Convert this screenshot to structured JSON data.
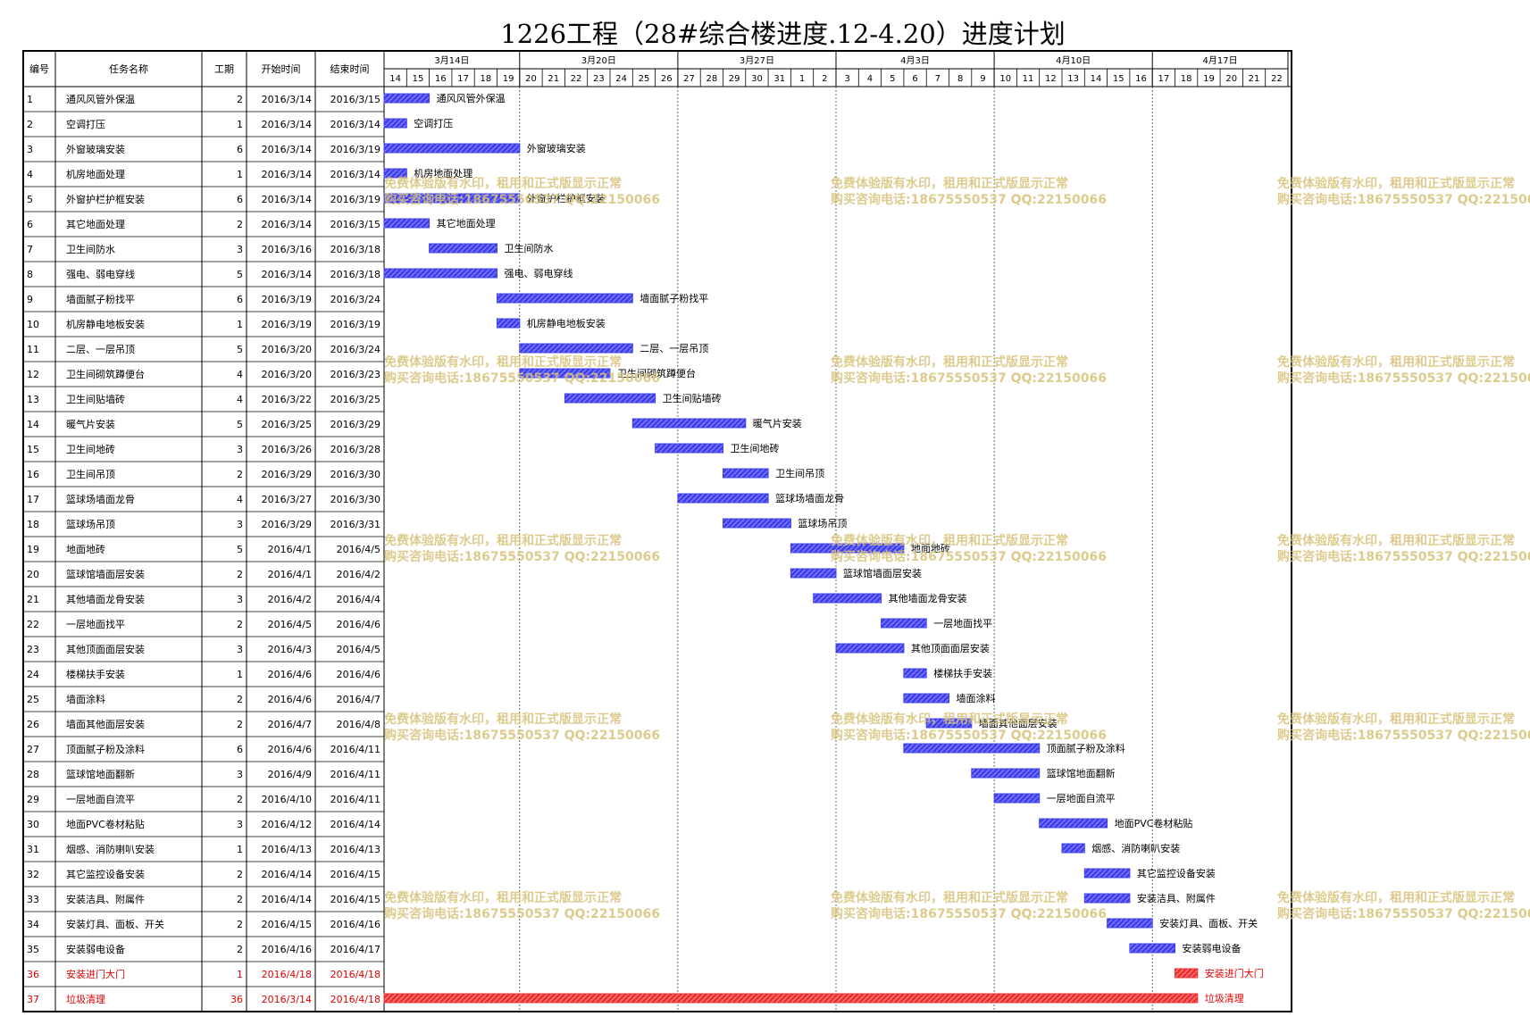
{
  "chart_data": {
    "type": "gantt",
    "title": "1226工程（28#综合楼进度.12-4.20）进度计划",
    "columns": [
      "编号",
      "任务名称",
      "工期",
      "开始时间",
      "结束时间"
    ],
    "timeline": {
      "start_day": "2016/3/14",
      "end_day": "2016/4/22",
      "week_labels": [
        "3月14日",
        "3月20日",
        "3月27日",
        "4月3日",
        "4月10日",
        "4月17日"
      ],
      "day_labels": [
        "14",
        "15",
        "16",
        "17",
        "18",
        "19",
        "20",
        "21",
        "22",
        "23",
        "24",
        "25",
        "26",
        "27",
        "28",
        "29",
        "30",
        "31",
        "1",
        "2",
        "3",
        "4",
        "5",
        "6",
        "7",
        "8",
        "9",
        "10",
        "11",
        "12",
        "13",
        "14",
        "15",
        "16",
        "17",
        "18",
        "19",
        "20",
        "21",
        "22"
      ]
    },
    "tasks": [
      {
        "id": "1",
        "name": "通风风管外保温",
        "duration": "2",
        "start": "2016/3/14",
        "end": "2016/3/15",
        "start_idx": 0,
        "span": 2,
        "critical": false
      },
      {
        "id": "2",
        "name": "空调打压",
        "duration": "1",
        "start": "2016/3/14",
        "end": "2016/3/14",
        "start_idx": 0,
        "span": 1,
        "critical": false
      },
      {
        "id": "3",
        "name": "外窗玻璃安装",
        "duration": "6",
        "start": "2016/3/14",
        "end": "2016/3/19",
        "start_idx": 0,
        "span": 6,
        "critical": false
      },
      {
        "id": "4",
        "name": "机房地面处理",
        "duration": "1",
        "start": "2016/3/14",
        "end": "2016/3/14",
        "start_idx": 0,
        "span": 1,
        "critical": false
      },
      {
        "id": "5",
        "name": "外窗护栏护框安装",
        "duration": "6",
        "start": "2016/3/14",
        "end": "2016/3/19",
        "start_idx": 0,
        "span": 6,
        "critical": false
      },
      {
        "id": "6",
        "name": "其它地面处理",
        "duration": "2",
        "start": "2016/3/14",
        "end": "2016/3/15",
        "start_idx": 0,
        "span": 2,
        "critical": false
      },
      {
        "id": "7",
        "name": "卫生间防水",
        "duration": "3",
        "start": "2016/3/16",
        "end": "2016/3/18",
        "start_idx": 2,
        "span": 3,
        "critical": false
      },
      {
        "id": "8",
        "name": "强电、弱电穿线",
        "duration": "5",
        "start": "2016/3/14",
        "end": "2016/3/18",
        "start_idx": 0,
        "span": 5,
        "critical": false
      },
      {
        "id": "9",
        "name": "墙面腻子粉找平",
        "duration": "6",
        "start": "2016/3/19",
        "end": "2016/3/24",
        "start_idx": 5,
        "span": 6,
        "critical": false
      },
      {
        "id": "10",
        "name": "机房静电地板安装",
        "duration": "1",
        "start": "2016/3/19",
        "end": "2016/3/19",
        "start_idx": 5,
        "span": 1,
        "critical": false
      },
      {
        "id": "11",
        "name": "二层、一层吊顶",
        "duration": "5",
        "start": "2016/3/20",
        "end": "2016/3/24",
        "start_idx": 6,
        "span": 5,
        "critical": false
      },
      {
        "id": "12",
        "name": "卫生间砌筑蹲便台",
        "duration": "4",
        "start": "2016/3/20",
        "end": "2016/3/23",
        "start_idx": 6,
        "span": 4,
        "critical": false
      },
      {
        "id": "13",
        "name": "卫生间贴墙砖",
        "duration": "4",
        "start": "2016/3/22",
        "end": "2016/3/25",
        "start_idx": 8,
        "span": 4,
        "critical": false
      },
      {
        "id": "14",
        "name": "暖气片安装",
        "duration": "5",
        "start": "2016/3/25",
        "end": "2016/3/29",
        "start_idx": 11,
        "span": 5,
        "critical": false
      },
      {
        "id": "15",
        "name": "卫生间地砖",
        "duration": "3",
        "start": "2016/3/26",
        "end": "2016/3/28",
        "start_idx": 12,
        "span": 3,
        "critical": false
      },
      {
        "id": "16",
        "name": "卫生间吊顶",
        "duration": "2",
        "start": "2016/3/29",
        "end": "2016/3/30",
        "start_idx": 15,
        "span": 2,
        "critical": false
      },
      {
        "id": "17",
        "name": "篮球场墙面龙骨",
        "duration": "4",
        "start": "2016/3/27",
        "end": "2016/3/30",
        "start_idx": 13,
        "span": 4,
        "critical": false
      },
      {
        "id": "18",
        "name": "篮球场吊顶",
        "duration": "3",
        "start": "2016/3/29",
        "end": "2016/3/31",
        "start_idx": 15,
        "span": 3,
        "critical": false
      },
      {
        "id": "19",
        "name": "地面地砖",
        "duration": "5",
        "start": "2016/4/1",
        "end": "2016/4/5",
        "start_idx": 18,
        "span": 5,
        "critical": false
      },
      {
        "id": "20",
        "name": "篮球馆墙面层安装",
        "duration": "2",
        "start": "2016/4/1",
        "end": "2016/4/2",
        "start_idx": 18,
        "span": 2,
        "critical": false
      },
      {
        "id": "21",
        "name": "其他墙面龙骨安装",
        "duration": "3",
        "start": "2016/4/2",
        "end": "2016/4/4",
        "start_idx": 19,
        "span": 3,
        "critical": false
      },
      {
        "id": "22",
        "name": "一层地面找平",
        "duration": "2",
        "start": "2016/4/5",
        "end": "2016/4/6",
        "start_idx": 22,
        "span": 2,
        "critical": false
      },
      {
        "id": "23",
        "name": "其他顶面面层安装",
        "duration": "3",
        "start": "2016/4/3",
        "end": "2016/4/5",
        "start_idx": 20,
        "span": 3,
        "critical": false
      },
      {
        "id": "24",
        "name": "楼梯扶手安装",
        "duration": "1",
        "start": "2016/4/6",
        "end": "2016/4/6",
        "start_idx": 23,
        "span": 1,
        "critical": false
      },
      {
        "id": "25",
        "name": "墙面涂料",
        "duration": "2",
        "start": "2016/4/6",
        "end": "2016/4/7",
        "start_idx": 23,
        "span": 2,
        "critical": false
      },
      {
        "id": "26",
        "name": "墙面其他面层安装",
        "duration": "2",
        "start": "2016/4/7",
        "end": "2016/4/8",
        "start_idx": 24,
        "span": 2,
        "critical": false
      },
      {
        "id": "27",
        "name": "顶面腻子粉及涂料",
        "duration": "6",
        "start": "2016/4/6",
        "end": "2016/4/11",
        "start_idx": 23,
        "span": 6,
        "critical": false
      },
      {
        "id": "28",
        "name": "篮球馆地面翻新",
        "duration": "3",
        "start": "2016/4/9",
        "end": "2016/4/11",
        "start_idx": 26,
        "span": 3,
        "critical": false
      },
      {
        "id": "29",
        "name": "一层地面自流平",
        "duration": "2",
        "start": "2016/4/10",
        "end": "2016/4/11",
        "start_idx": 27,
        "span": 2,
        "critical": false
      },
      {
        "id": "30",
        "name": "地面PVC卷材粘贴",
        "duration": "3",
        "start": "2016/4/12",
        "end": "2016/4/14",
        "start_idx": 29,
        "span": 3,
        "critical": false
      },
      {
        "id": "31",
        "name": "烟感、消防喇叭安装",
        "duration": "1",
        "start": "2016/4/13",
        "end": "2016/4/13",
        "start_idx": 30,
        "span": 1,
        "critical": false
      },
      {
        "id": "32",
        "name": "其它监控设备安装",
        "duration": "2",
        "start": "2016/4/14",
        "end": "2016/4/15",
        "start_idx": 31,
        "span": 2,
        "critical": false
      },
      {
        "id": "33",
        "name": "安装洁具、附属件",
        "duration": "2",
        "start": "2016/4/14",
        "end": "2016/4/15",
        "start_idx": 31,
        "span": 2,
        "critical": false
      },
      {
        "id": "34",
        "name": "安装灯具、面板、开关",
        "duration": "2",
        "start": "2016/4/15",
        "end": "2016/4/16",
        "start_idx": 32,
        "span": 2,
        "critical": false
      },
      {
        "id": "35",
        "name": "安装弱电设备",
        "duration": "2",
        "start": "2016/4/16",
        "end": "2016/4/17",
        "start_idx": 33,
        "span": 2,
        "critical": false
      },
      {
        "id": "36",
        "name": "安装进门大门",
        "duration": "1",
        "start": "2016/4/18",
        "end": "2016/4/18",
        "start_idx": 35,
        "span": 1,
        "critical": true
      },
      {
        "id": "37",
        "name": "垃圾清理",
        "duration": "36",
        "start": "2016/3/14",
        "end": "2016/4/18",
        "start_idx": 0,
        "span": 36,
        "critical": true
      }
    ],
    "watermark": {
      "line1": "免费体验版有水印，租用和正式版显示正常",
      "line2": "购买咨询电话:18675550537 QQ:22150066"
    },
    "colors": {
      "bar": "#4040ee",
      "bar_hatch": "#9a9aff",
      "critical_bar": "#ee3030",
      "critical_hatch": "#ff9a9a",
      "critical_text": "#e00000",
      "watermark": "#d8c27a"
    }
  }
}
